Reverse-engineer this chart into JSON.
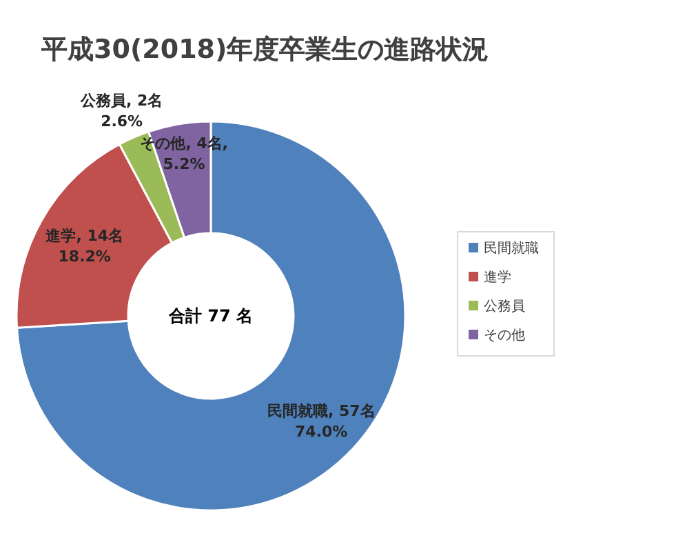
{
  "chart_data": {
    "type": "donut",
    "title": "平成30(2018)年度卒業生の進路状況",
    "categories": [
      "民間就職",
      "進学",
      "公務員",
      "その他"
    ],
    "values": [
      57,
      14,
      2,
      4
    ],
    "colors": [
      "#4f81bd",
      "#c0504d",
      "#9bbb59",
      "#8064a2"
    ],
    "value_labels": [
      "民間就職, 57名\n74.0%",
      "進学, 14名\n18.2%",
      "公務員, 2名\n2.6%",
      "その他, 4名,\n5.2%"
    ],
    "annotations": [
      "合計 77 名"
    ],
    "legend": "right"
  }
}
